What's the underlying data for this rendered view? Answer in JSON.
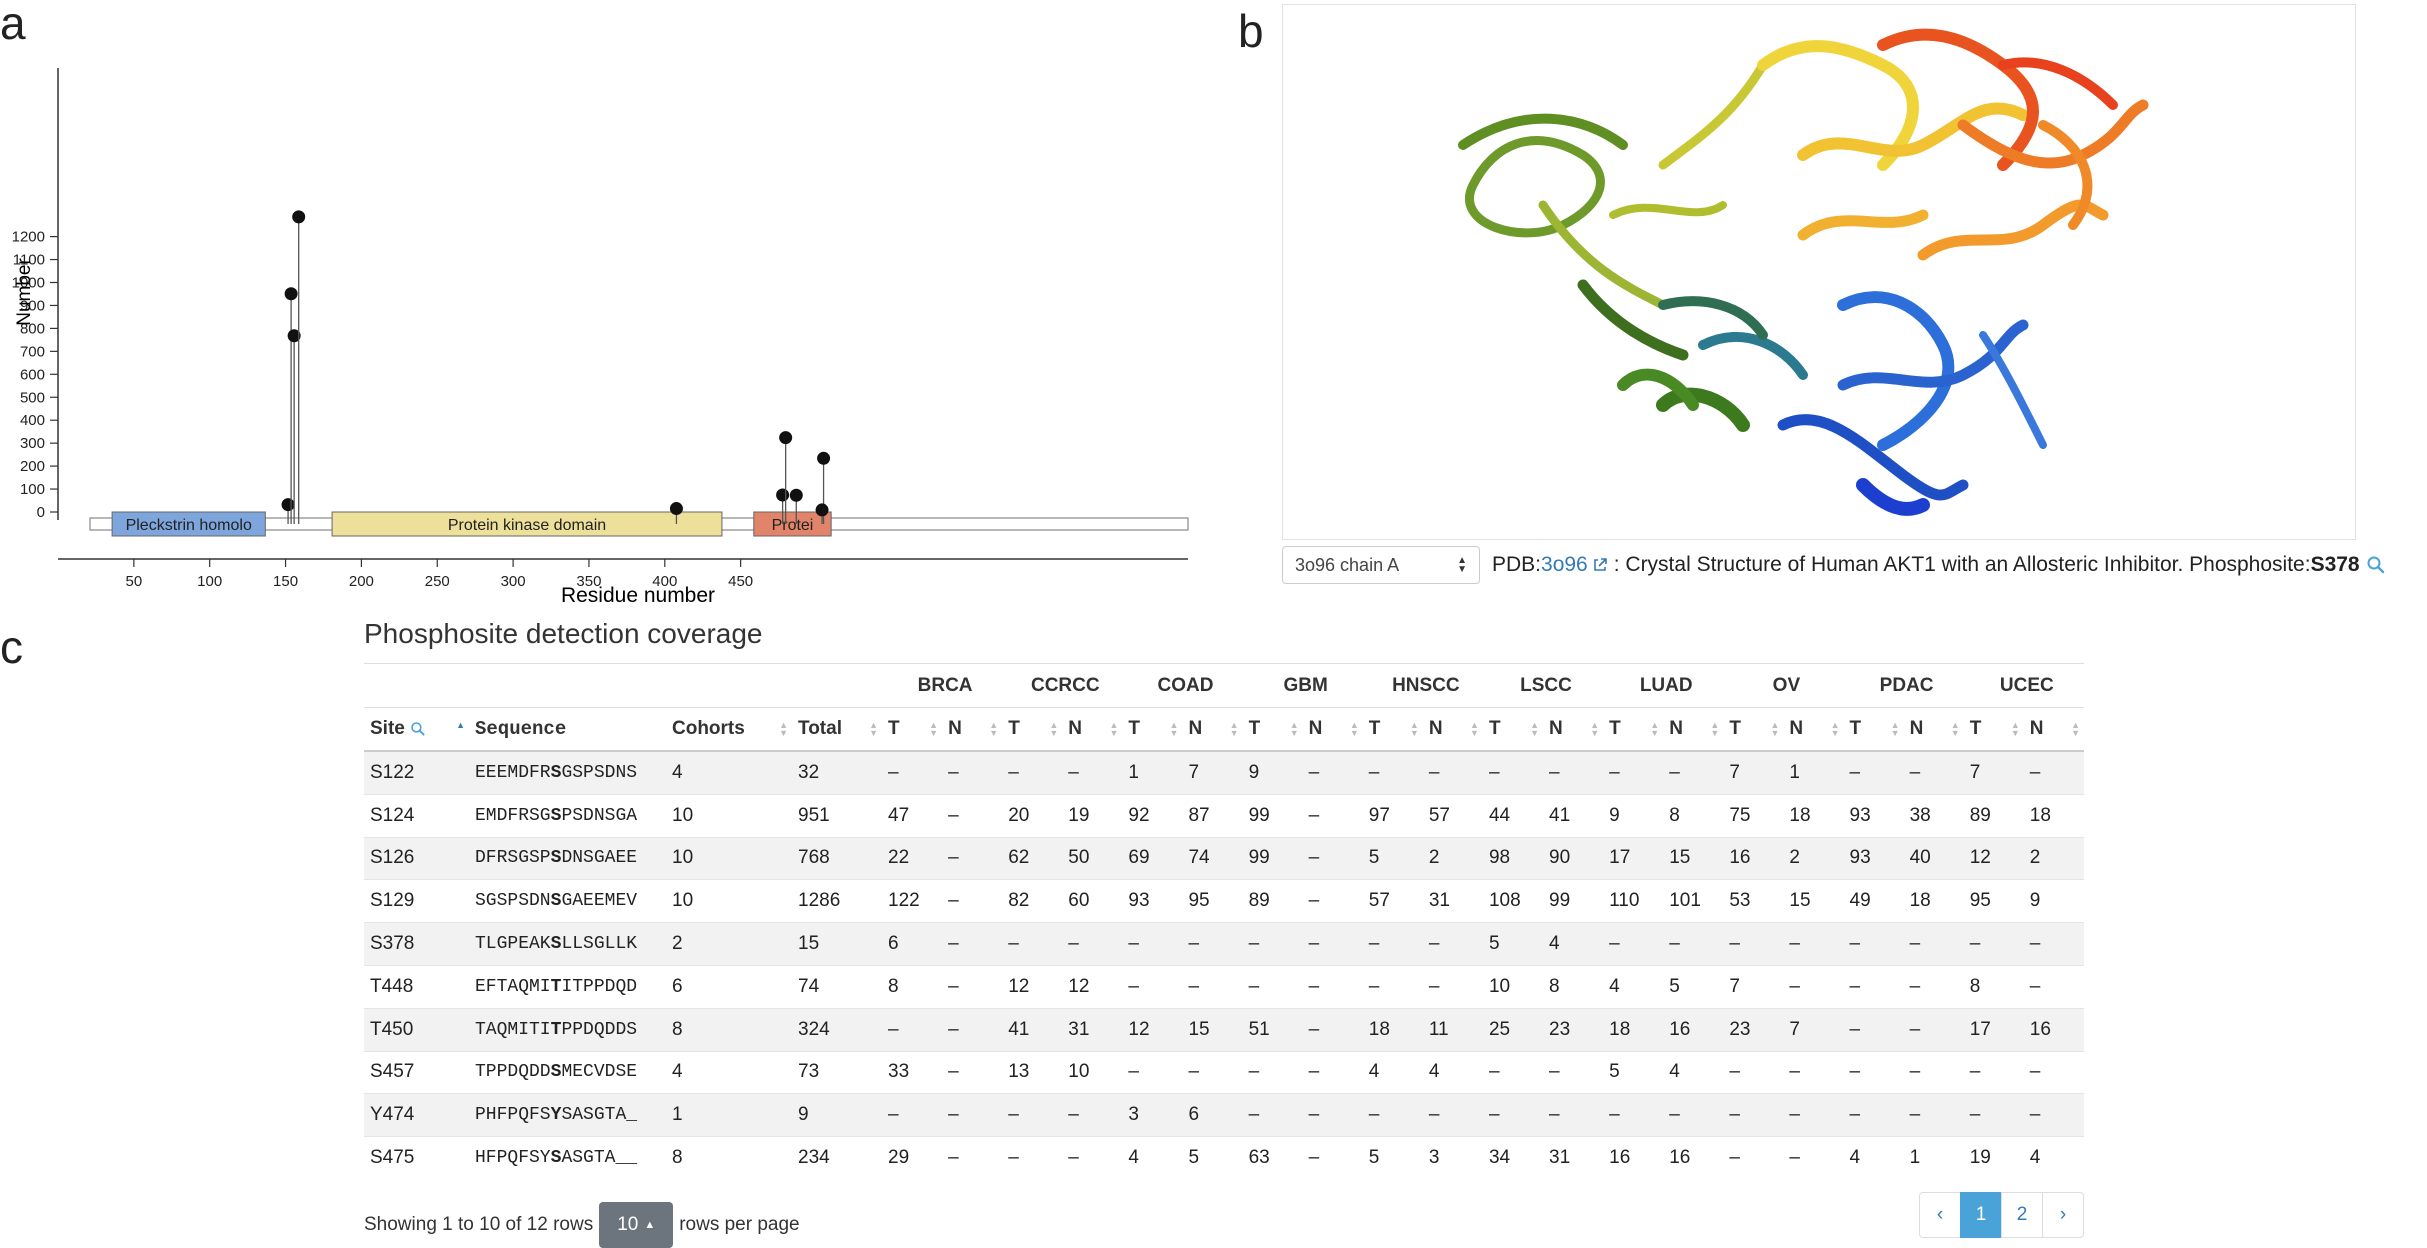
{
  "panels": {
    "a": "a",
    "b": "b",
    "c": "c"
  },
  "chart_data": {
    "type": "lollipop",
    "xlabel": "Residue number",
    "ylabel": "Number",
    "xlim": [
      0,
      460
    ],
    "ylim": [
      0,
      1286
    ],
    "x_ticks": [
      50,
      100,
      150,
      200,
      250,
      300,
      350,
      400,
      450
    ],
    "y_ticks": [
      0,
      100,
      200,
      300,
      400,
      500,
      600,
      700,
      800,
      900,
      1000,
      1100,
      1200
    ],
    "points": [
      {
        "x": 122,
        "y": 32
      },
      {
        "x": 124,
        "y": 951
      },
      {
        "x": 126,
        "y": 768
      },
      {
        "x": 129,
        "y": 1286
      },
      {
        "x": 378,
        "y": 15
      },
      {
        "x": 448,
        "y": 74
      },
      {
        "x": 450,
        "y": 324
      },
      {
        "x": 457,
        "y": 73
      },
      {
        "x": 475,
        "y": 234
      },
      {
        "x": 474,
        "y": 9
      }
    ],
    "domains": [
      {
        "label": "Pleckstrin homolo",
        "start": 6,
        "end": 107,
        "color": "#7ea6dc"
      },
      {
        "label": "Protein kinase domain",
        "start": 151,
        "end": 408,
        "color": "#ece09b"
      },
      {
        "label": "Protei",
        "start": 429,
        "end": 480,
        "color": "#e18469"
      }
    ]
  },
  "structure": {
    "select_value": "3o96 chain A",
    "pdb_prefix": "PDB: ",
    "pdb_id": "3o96",
    "desc": ": Crystal Structure of Human AKT1 with an Allosteric Inhibitor. Phosphosite: ",
    "site": "S378"
  },
  "table": {
    "title": "Phosphosite detection coverage",
    "group_headers": [
      "BRCA",
      "CCRCC",
      "COAD",
      "GBM",
      "HNSCC",
      "LSCC",
      "LUAD",
      "OV",
      "PDAC",
      "UCEC"
    ],
    "col_site": "Site",
    "col_sequence": "Sequence",
    "col_cohorts": "Cohorts",
    "col_total": "Total",
    "t_label": "T",
    "n_label": "N",
    "rows": [
      {
        "site": "S122",
        "pre": "EEEMDFR",
        "mid": "S",
        "post": "GSPSDNS",
        "cohorts": "4",
        "total": "32",
        "vals": [
          "–",
          "–",
          "–",
          "–",
          "1",
          "7",
          "9",
          "–",
          "–",
          "–",
          "–",
          "–",
          "–",
          "–",
          "7",
          "1",
          "–",
          "–",
          "7",
          "–"
        ]
      },
      {
        "site": "S124",
        "pre": "EMDFRSG",
        "mid": "S",
        "post": "PSDNSGA",
        "cohorts": "10",
        "total": "951",
        "vals": [
          "47",
          "–",
          "20",
          "19",
          "92",
          "87",
          "99",
          "–",
          "97",
          "57",
          "44",
          "41",
          "9",
          "8",
          "75",
          "18",
          "93",
          "38",
          "89",
          "18"
        ]
      },
      {
        "site": "S126",
        "pre": "DFRSGSP",
        "mid": "S",
        "post": "DNSGAEE",
        "cohorts": "10",
        "total": "768",
        "vals": [
          "22",
          "–",
          "62",
          "50",
          "69",
          "74",
          "99",
          "–",
          "5",
          "2",
          "98",
          "90",
          "17",
          "15",
          "16",
          "2",
          "93",
          "40",
          "12",
          "2"
        ]
      },
      {
        "site": "S129",
        "pre": "SGSPSDN",
        "mid": "S",
        "post": "GAEEMEV",
        "cohorts": "10",
        "total": "1286",
        "vals": [
          "122",
          "–",
          "82",
          "60",
          "93",
          "95",
          "89",
          "–",
          "57",
          "31",
          "108",
          "99",
          "110",
          "101",
          "53",
          "15",
          "49",
          "18",
          "95",
          "9"
        ]
      },
      {
        "site": "S378",
        "pre": "TLGPEAK",
        "mid": "S",
        "post": "LLSGLLK",
        "cohorts": "2",
        "total": "15",
        "vals": [
          "6",
          "–",
          "–",
          "–",
          "–",
          "–",
          "–",
          "–",
          "–",
          "–",
          "5",
          "4",
          "–",
          "–",
          "–",
          "–",
          "–",
          "–",
          "–",
          "–"
        ]
      },
      {
        "site": "T448",
        "pre": "EFTAQMI",
        "mid": "T",
        "post": "ITPPDQD",
        "cohorts": "6",
        "total": "74",
        "vals": [
          "8",
          "–",
          "12",
          "12",
          "–",
          "–",
          "–",
          "–",
          "–",
          "–",
          "10",
          "8",
          "4",
          "5",
          "7",
          "–",
          "–",
          "–",
          "8",
          "–"
        ]
      },
      {
        "site": "T450",
        "pre": "TAQMITI",
        "mid": "T",
        "post": "PPDQDDS",
        "cohorts": "8",
        "total": "324",
        "vals": [
          "–",
          "–",
          "41",
          "31",
          "12",
          "15",
          "51",
          "–",
          "18",
          "11",
          "25",
          "23",
          "18",
          "16",
          "23",
          "7",
          "–",
          "–",
          "17",
          "16"
        ]
      },
      {
        "site": "S457",
        "pre": "TPPDQDD",
        "mid": "S",
        "post": "MECVDSE",
        "cohorts": "4",
        "total": "73",
        "vals": [
          "33",
          "–",
          "13",
          "10",
          "–",
          "–",
          "–",
          "–",
          "4",
          "4",
          "–",
          "–",
          "5",
          "4",
          "–",
          "–",
          "–",
          "–",
          "–",
          "–"
        ]
      },
      {
        "site": "Y474",
        "pre": "PHFPQFS",
        "mid": "Y",
        "post": "SASGTA_",
        "cohorts": "1",
        "total": "9",
        "vals": [
          "–",
          "–",
          "–",
          "–",
          "3",
          "6",
          "–",
          "–",
          "–",
          "–",
          "–",
          "–",
          "–",
          "–",
          "–",
          "–",
          "–",
          "–",
          "–",
          "–"
        ]
      },
      {
        "site": "S475",
        "pre": "HFPQFSY",
        "mid": "S",
        "post": "ASGTA__",
        "cohorts": "8",
        "total": "234",
        "vals": [
          "29",
          "–",
          "–",
          "–",
          "4",
          "5",
          "63",
          "–",
          "5",
          "3",
          "34",
          "31",
          "16",
          "16",
          "–",
          "–",
          "4",
          "1",
          "19",
          "4"
        ]
      }
    ]
  },
  "pagination": {
    "showing": "Showing 1 to 10 of 12 rows",
    "per_page": "10",
    "rows_per_page": "rows per page",
    "prev": "‹",
    "pages": [
      "1",
      "2"
    ],
    "next": "›"
  }
}
